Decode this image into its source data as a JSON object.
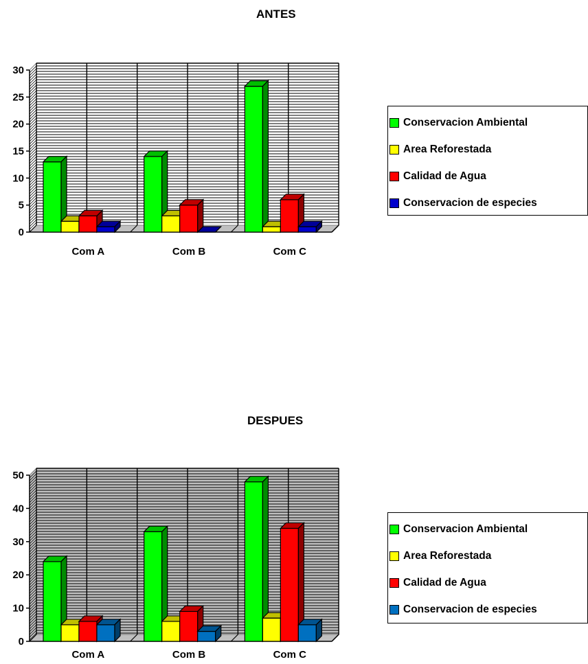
{
  "chart_data": [
    {
      "type": "bar",
      "title": "ANTES",
      "categories": [
        "Com A",
        "Com B",
        "Com C"
      ],
      "series": [
        {
          "name": "Conservacion Ambiental",
          "color": "#00ff00",
          "values": [
            13,
            14,
            27
          ]
        },
        {
          "name": "Area Reforestada",
          "color": "#ffff00",
          "values": [
            2,
            3,
            1
          ]
        },
        {
          "name": "Calidad de Agua",
          "color": "#ff0000",
          "values": [
            3,
            5,
            6
          ]
        },
        {
          "name": "Conservacion de especies",
          "color": "#0000cc",
          "values": [
            1,
            0,
            1
          ]
        }
      ],
      "ylim": [
        0,
        30
      ],
      "yticks": [
        0,
        5,
        10,
        15,
        20,
        25,
        30
      ],
      "wall_color": "#ffffff",
      "grid": true,
      "legend": "right"
    },
    {
      "type": "bar",
      "title": "DESPUES",
      "categories": [
        "Com A",
        "Com B",
        "Com C"
      ],
      "series": [
        {
          "name": "Conservacion Ambiental",
          "color": "#00ff00",
          "values": [
            24,
            33,
            48
          ]
        },
        {
          "name": "Area Reforestada",
          "color": "#ffff00",
          "values": [
            5,
            6,
            7
          ]
        },
        {
          "name": "Calidad de Agua",
          "color": "#ff0000",
          "values": [
            6,
            9,
            34
          ]
        },
        {
          "name": "Conservacion de especies",
          "color": "#0070c0",
          "values": [
            5,
            3,
            5
          ]
        }
      ],
      "ylim": [
        0,
        50
      ],
      "yticks": [
        0,
        10,
        20,
        30,
        40,
        50
      ],
      "wall_color": "#c0c0c0",
      "grid": true,
      "legend": "right"
    }
  ]
}
